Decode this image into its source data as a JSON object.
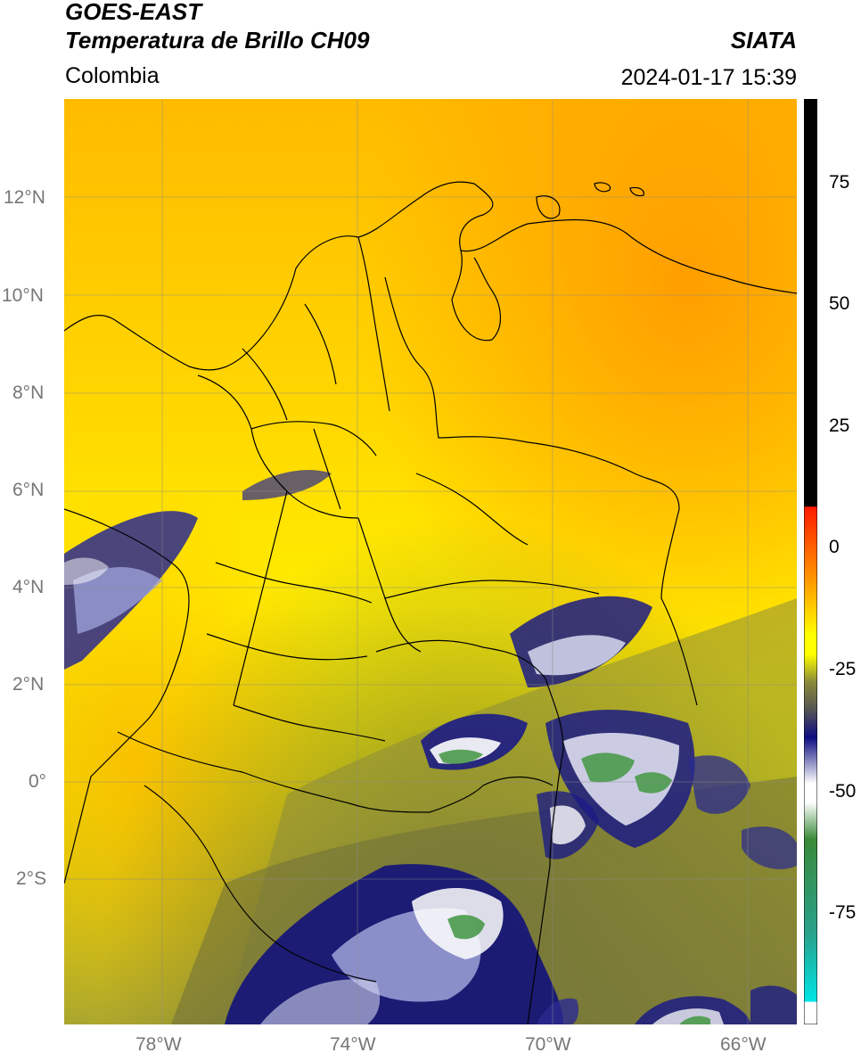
{
  "header": {
    "satellite": "GOES-EAST",
    "product": "Temperatura de Brillo CH09",
    "agency": "SIATA",
    "region": "Colombia",
    "timestamp": "2024-01-17 15:39"
  },
  "map": {
    "lat_labels": [
      "12°N",
      "10°N",
      "8°N",
      "6°N",
      "4°N",
      "2°N",
      "0°",
      "2°S"
    ],
    "lon_labels": [
      "78°W",
      "74°W",
      "70°W",
      "66°W"
    ],
    "extent": {
      "lon_min": -80.0,
      "lon_max": -65.0,
      "lat_min": -5.0,
      "lat_max": 14.0
    }
  },
  "colorbar": {
    "ticks": [
      "75",
      "50",
      "25",
      "0",
      "-25",
      "-50",
      "-75"
    ],
    "tick_values": [
      75,
      50,
      25,
      0,
      -25,
      -50,
      -75
    ],
    "range": [
      -95,
      90
    ],
    "colors": {
      "black": "#000000",
      "red": "#ff1a00",
      "orange": "#ff9900",
      "yellow": "#ffff00",
      "olive": "#8a8a3a",
      "gray": "#555555",
      "navy": "#0d0d80",
      "white": "#ffffff",
      "green": "#3a8a3a",
      "cyan": "#00e5e5"
    }
  }
}
